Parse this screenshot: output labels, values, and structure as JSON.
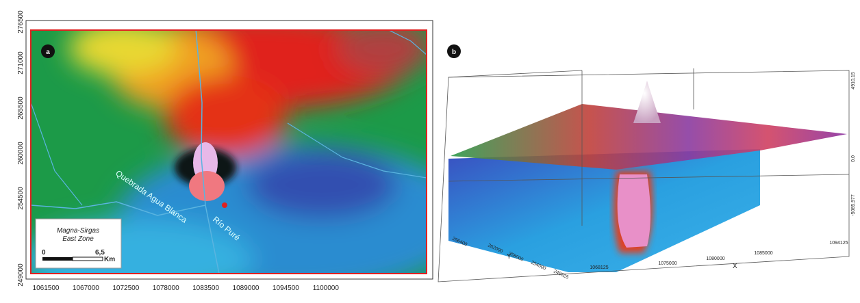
{
  "panel_a": {
    "label": "a",
    "y_ticks": [
      "276500",
      "271000",
      "265500",
      "260000",
      "254500",
      "249000"
    ],
    "x_ticks": [
      "1061500",
      "1067000",
      "1072500",
      "1078000",
      "1083500",
      "1089000",
      "1094500",
      "1100000"
    ],
    "rivers": [
      "Quebrada Agua Blanca",
      "Río Puré"
    ],
    "scale_box": {
      "datum": "Magna-Sirgas",
      "zone": "East Zone",
      "scale_start": "0",
      "scale_end": "6,5",
      "unit": "Km"
    }
  },
  "panel_b": {
    "label": "b",
    "z_ticks": [
      "4910,15",
      "0,0",
      "-5085,977"
    ],
    "x_ticks": [
      "1068125",
      "1075000",
      "1080000",
      "1085000",
      "1094125"
    ],
    "y_ticks": [
      "249625",
      "254000",
      "258000",
      "262000",
      "266400"
    ],
    "x_axis_label": "X",
    "y_axis_label": "Y"
  }
}
